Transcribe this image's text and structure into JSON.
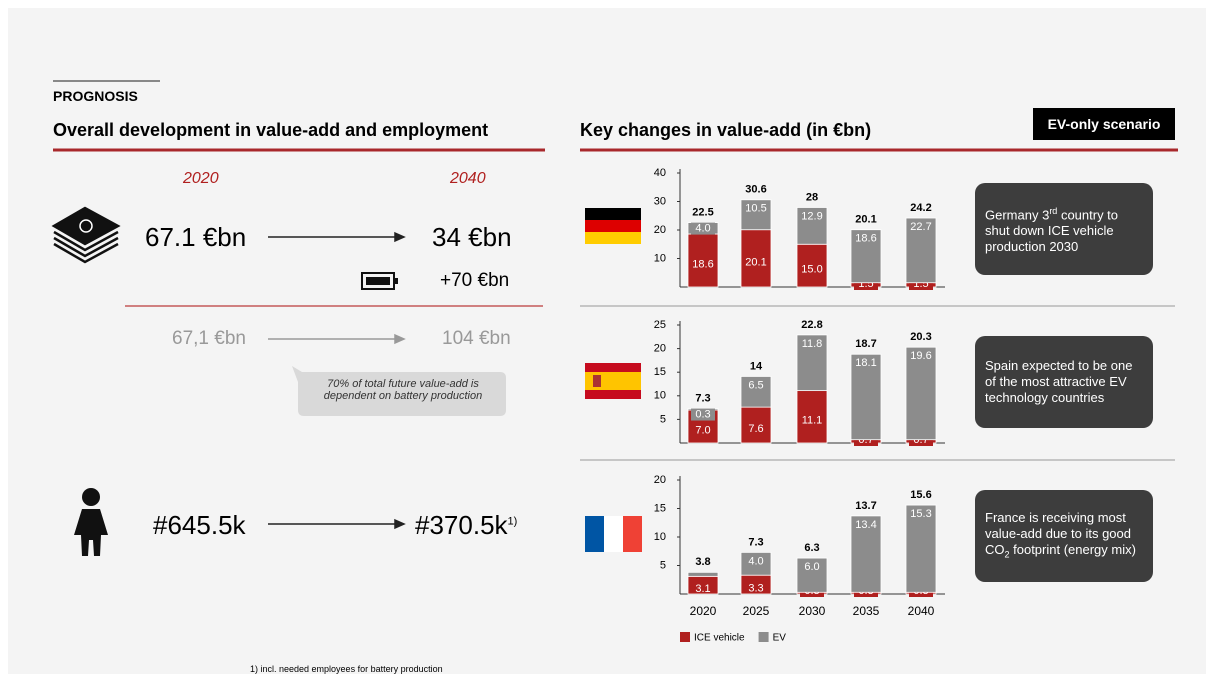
{
  "header": {
    "section": "PROGNOSIS",
    "left_title": "Overall development in value-add and employment",
    "right_title": "Key changes in value-add (in €bn)",
    "badge": "EV-only scenario"
  },
  "left": {
    "year_start": "2020",
    "year_end": "2040",
    "value_start": "67.1 €bn",
    "value_end": "34 €bn",
    "battery": "+70 €bn",
    "total_start": "67,1 €bn",
    "total_end": "104 €bn",
    "callout": "70% of total future value-add is dependent on battery production",
    "jobs_start": "#645.5k",
    "jobs_end": "#370.5k",
    "jobs_note": "1)",
    "footnote": "1) incl. needed employees for battery production"
  },
  "notes": [
    {
      "parts": [
        "Germany 3",
        "rd",
        " country to shut down ICE vehicle production 2030"
      ]
    },
    {
      "parts": [
        "Spain expected to be one of the most attractive EV technology countries"
      ]
    },
    {
      "parts": [
        "France is receiving most value-add due to its good CO",
        "2",
        " footprint (energy mix)"
      ]
    }
  ],
  "chart_data": [
    {
      "type": "stacked_bar",
      "categories": [
        null,
        null,
        null,
        null,
        null
      ],
      "ylim": [
        0,
        40
      ],
      "yticks": [
        10,
        20,
        30,
        40
      ],
      "series": [
        {
          "name": "ICE vehicle",
          "color": "#b0201f",
          "values": [
            18.6,
            20.1,
            15.0,
            1.5,
            1.5
          ],
          "value_labels": [
            "18.6",
            "20.1",
            "15.0",
            "1.5",
            "1.5"
          ]
        },
        {
          "name": "EV",
          "color": "#8c8c8c",
          "values": [
            4.0,
            10.5,
            12.9,
            18.6,
            22.7
          ],
          "value_labels": [
            "4.0",
            "10.5",
            "12.9",
            "18.6",
            "22.7"
          ]
        }
      ],
      "totals": [
        22.5,
        30.6,
        28.0,
        20.1,
        24.2
      ]
    },
    {
      "type": "stacked_bar",
      "categories": [
        null,
        null,
        null,
        null,
        null
      ],
      "ylim": [
        0,
        25
      ],
      "yticks": [
        5,
        10,
        15,
        20,
        25
      ],
      "series": [
        {
          "name": "ICE vehicle",
          "color": "#b0201f",
          "values": [
            7.0,
            7.6,
            11.1,
            0.7,
            0.7
          ],
          "value_labels": [
            "7.0",
            "7.6",
            "11.1",
            "0.7",
            "0.7"
          ]
        },
        {
          "name": "EV",
          "color": "#8c8c8c",
          "values": [
            0.3,
            6.5,
            11.8,
            18.1,
            19.6
          ],
          "value_labels": [
            "0.3",
            "6.5",
            "11.8",
            "18.1",
            "19.6"
          ]
        }
      ],
      "totals": [
        7.3,
        14.0,
        22.8,
        18.7,
        20.3
      ]
    },
    {
      "type": "stacked_bar",
      "categories": [
        "2020",
        "2025",
        "2030",
        "2035",
        "2040"
      ],
      "ylim": [
        0,
        20
      ],
      "yticks": [
        5,
        10,
        15,
        20
      ],
      "legend": "bottom",
      "series": [
        {
          "name": "ICE vehicle",
          "color": "#b0201f",
          "values": [
            3.1,
            3.3,
            0.3,
            0.3,
            0.3
          ],
          "value_labels": [
            "3.1",
            "3.3",
            "0.3",
            "0.3",
            "0.3"
          ]
        },
        {
          "name": "EV",
          "color": "#8c8c8c",
          "values": [
            0.7,
            4.0,
            6.0,
            13.4,
            15.3
          ],
          "value_labels": [
            null,
            "4.0",
            "6.0",
            "13.4",
            "15.3"
          ]
        }
      ],
      "totals": [
        3.8,
        7.3,
        6.3,
        13.7,
        15.6
      ]
    }
  ]
}
